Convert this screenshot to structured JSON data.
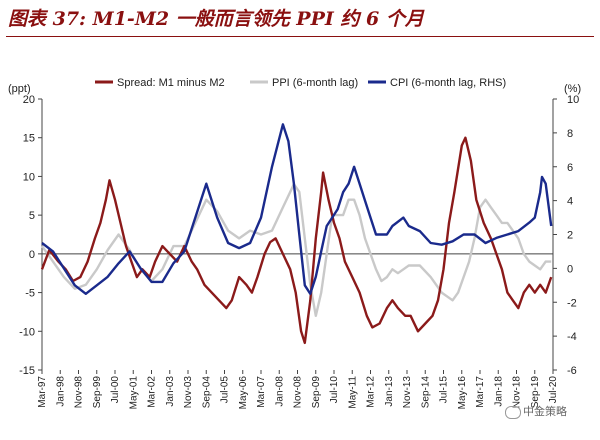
{
  "title": "图表 37: M1-M2 一般而言领先 PPI 约 6 个月",
  "watermark": "中金策略",
  "chart_data": {
    "type": "line",
    "left_unit": "(ppt)",
    "right_unit": "(%)",
    "ylim_left": [
      -15,
      20
    ],
    "yticks_left": [
      20,
      15,
      10,
      5,
      0,
      -5,
      -10,
      -15
    ],
    "ylim_right": [
      -6,
      10
    ],
    "yticks_right": [
      10,
      8,
      6,
      4,
      2,
      0,
      -2,
      -4,
      -6
    ],
    "x_ticks": [
      "Mar-97",
      "Jan-98",
      "Nov-98",
      "Sep-99",
      "Jul-00",
      "May-01",
      "Mar-02",
      "Jan-03",
      "Nov-03",
      "Sep-04",
      "Jul-05",
      "May-06",
      "Mar-07",
      "Jan-08",
      "Nov-08",
      "Sep-09",
      "Jul-10",
      "May-11",
      "Mar-12",
      "Jan-13",
      "Nov-13",
      "Sep-14",
      "Jul-15",
      "May-16",
      "Mar-17",
      "Jan-18",
      "Nov-18",
      "Sep-19",
      "Jul-20"
    ],
    "legend_position": "top",
    "gridlines": false,
    "series": [
      {
        "name": "Spread: M1 minus M2",
        "axis": "left",
        "color": "#8b1a1a",
        "points": [
          [
            "1997-03",
            -2
          ],
          [
            "1997-07",
            0.5
          ],
          [
            "1997-12",
            -1
          ],
          [
            "1998-04",
            -2
          ],
          [
            "1998-08",
            -3.5
          ],
          [
            "1998-12",
            -3
          ],
          [
            "1999-04",
            -1
          ],
          [
            "1999-08",
            2
          ],
          [
            "1999-11",
            4
          ],
          [
            "2000-02",
            7
          ],
          [
            "2000-04",
            9.5
          ],
          [
            "2000-07",
            7
          ],
          [
            "2000-10",
            4
          ],
          [
            "2001-01",
            1
          ],
          [
            "2001-04",
            -1
          ],
          [
            "2001-07",
            -3
          ],
          [
            "2001-10",
            -2
          ],
          [
            "2002-02",
            -3
          ],
          [
            "2002-05",
            -1
          ],
          [
            "2002-09",
            1
          ],
          [
            "2003-01",
            0
          ],
          [
            "2003-05",
            -1
          ],
          [
            "2003-09",
            1
          ],
          [
            "2004-01",
            -1
          ],
          [
            "2004-04",
            -2
          ],
          [
            "2004-08",
            -4
          ],
          [
            "2004-12",
            -5
          ],
          [
            "2005-04",
            -6
          ],
          [
            "2005-08",
            -7
          ],
          [
            "2005-11",
            -6
          ],
          [
            "2006-03",
            -3
          ],
          [
            "2006-07",
            -4
          ],
          [
            "2006-10",
            -5
          ],
          [
            "2007-01",
            -3
          ],
          [
            "2007-05",
            0
          ],
          [
            "2007-08",
            1.5
          ],
          [
            "2007-11",
            2
          ],
          [
            "2008-03",
            0
          ],
          [
            "2008-07",
            -2
          ],
          [
            "2008-10",
            -5
          ],
          [
            "2009-01",
            -10
          ],
          [
            "2009-03",
            -11.5
          ],
          [
            "2009-06",
            -6
          ],
          [
            "2009-09",
            2
          ],
          [
            "2009-12",
            8
          ],
          [
            "2010-01",
            10.5
          ],
          [
            "2010-04",
            7
          ],
          [
            "2010-07",
            4
          ],
          [
            "2010-10",
            2
          ],
          [
            "2011-01",
            -1
          ],
          [
            "2011-05",
            -3
          ],
          [
            "2011-09",
            -5
          ],
          [
            "2012-01",
            -8
          ],
          [
            "2012-04",
            -9.5
          ],
          [
            "2012-08",
            -9
          ],
          [
            "2012-12",
            -7
          ],
          [
            "2013-03",
            -6
          ],
          [
            "2013-06",
            -7
          ],
          [
            "2013-10",
            -8
          ],
          [
            "2014-01",
            -8
          ],
          [
            "2014-05",
            -10
          ],
          [
            "2014-09",
            -9
          ],
          [
            "2015-01",
            -8
          ],
          [
            "2015-04",
            -6
          ],
          [
            "2015-07",
            -2
          ],
          [
            "2015-10",
            4
          ],
          [
            "2016-01",
            8
          ],
          [
            "2016-05",
            14
          ],
          [
            "2016-07",
            15
          ],
          [
            "2016-10",
            12
          ],
          [
            "2017-01",
            7
          ],
          [
            "2017-05",
            4
          ],
          [
            "2017-09",
            2
          ],
          [
            "2017-12",
            0
          ],
          [
            "2018-03",
            -2
          ],
          [
            "2018-06",
            -5
          ],
          [
            "2018-09",
            -6
          ],
          [
            "2018-12",
            -7
          ],
          [
            "2019-03",
            -5
          ],
          [
            "2019-06",
            -4
          ],
          [
            "2019-09",
            -5
          ],
          [
            "2019-12",
            -4
          ],
          [
            "2020-03",
            -5
          ],
          [
            "2020-06",
            -3
          ]
        ]
      },
      {
        "name": "PPI (6-month lag)",
        "axis": "left",
        "color": "#c9c9c9",
        "points": [
          [
            "1997-03",
            1
          ],
          [
            "1997-09",
            -1
          ],
          [
            "1998-03",
            -3
          ],
          [
            "1998-09",
            -4.5
          ],
          [
            "1999-03",
            -4
          ],
          [
            "1999-09",
            -2
          ],
          [
            "2000-03",
            0.5
          ],
          [
            "2000-09",
            2.5
          ],
          [
            "2001-03",
            0.5
          ],
          [
            "2001-09",
            -2
          ],
          [
            "2002-03",
            -3.5
          ],
          [
            "2002-09",
            -2
          ],
          [
            "2003-03",
            1
          ],
          [
            "2003-09",
            1
          ],
          [
            "2004-03",
            4
          ],
          [
            "2004-09",
            7
          ],
          [
            "2005-03",
            5.5
          ],
          [
            "2005-09",
            3
          ],
          [
            "2006-03",
            2
          ],
          [
            "2006-09",
            3
          ],
          [
            "2007-03",
            2.5
          ],
          [
            "2007-09",
            3
          ],
          [
            "2008-03",
            6
          ],
          [
            "2008-09",
            9
          ],
          [
            "2008-12",
            8
          ],
          [
            "2009-03",
            2
          ],
          [
            "2009-06",
            -4
          ],
          [
            "2009-09",
            -8
          ],
          [
            "2009-12",
            -5
          ],
          [
            "2010-03",
            0
          ],
          [
            "2010-06",
            5
          ],
          [
            "2010-09",
            5
          ],
          [
            "2010-12",
            5
          ],
          [
            "2011-03",
            7
          ],
          [
            "2011-06",
            7
          ],
          [
            "2011-09",
            5
          ],
          [
            "2011-12",
            2
          ],
          [
            "2012-03",
            0
          ],
          [
            "2012-06",
            -2
          ],
          [
            "2012-09",
            -3.5
          ],
          [
            "2012-12",
            -3
          ],
          [
            "2013-03",
            -2
          ],
          [
            "2013-06",
            -2.5
          ],
          [
            "2013-09",
            -2
          ],
          [
            "2013-12",
            -1.5
          ],
          [
            "2014-06",
            -1.5
          ],
          [
            "2014-12",
            -3
          ],
          [
            "2015-06",
            -5
          ],
          [
            "2015-12",
            -6
          ],
          [
            "2016-03",
            -5
          ],
          [
            "2016-06",
            -3
          ],
          [
            "2016-09",
            -1
          ],
          [
            "2016-12",
            2
          ],
          [
            "2017-03",
            6
          ],
          [
            "2017-06",
            7
          ],
          [
            "2017-09",
            6
          ],
          [
            "2017-12",
            5
          ],
          [
            "2018-03",
            4
          ],
          [
            "2018-06",
            4
          ],
          [
            "2018-09",
            3
          ],
          [
            "2018-12",
            2
          ],
          [
            "2019-03",
            0
          ],
          [
            "2019-06",
            -1
          ],
          [
            "2019-09",
            -1.5
          ],
          [
            "2019-12",
            -2
          ],
          [
            "2020-03",
            -1
          ],
          [
            "2020-06",
            -1
          ]
        ]
      },
      {
        "name": "CPI (6-month lag, RHS)",
        "axis": "right",
        "color": "#1a2a8c",
        "points": [
          [
            "1997-03",
            1.5
          ],
          [
            "1997-09",
            1
          ],
          [
            "1998-03",
            0
          ],
          [
            "1998-09",
            -1
          ],
          [
            "1999-03",
            -1.5
          ],
          [
            "1999-09",
            -1
          ],
          [
            "2000-03",
            -0.5
          ],
          [
            "2000-09",
            0.3
          ],
          [
            "2001-03",
            1
          ],
          [
            "2001-09",
            0
          ],
          [
            "2002-03",
            -0.8
          ],
          [
            "2002-09",
            -0.8
          ],
          [
            "2003-03",
            0.3
          ],
          [
            "2003-09",
            1
          ],
          [
            "2004-03",
            3
          ],
          [
            "2004-09",
            5
          ],
          [
            "2005-03",
            3
          ],
          [
            "2005-09",
            1.5
          ],
          [
            "2006-03",
            1.2
          ],
          [
            "2006-09",
            1.5
          ],
          [
            "2007-03",
            3
          ],
          [
            "2007-09",
            6
          ],
          [
            "2008-03",
            8.5
          ],
          [
            "2008-06",
            7.5
          ],
          [
            "2008-09",
            5
          ],
          [
            "2008-12",
            2
          ],
          [
            "2009-03",
            -1
          ],
          [
            "2009-06",
            -1.5
          ],
          [
            "2009-09",
            -0.5
          ],
          [
            "2009-12",
            1
          ],
          [
            "2010-03",
            2.5
          ],
          [
            "2010-06",
            3
          ],
          [
            "2010-09",
            3.5
          ],
          [
            "2010-12",
            4.5
          ],
          [
            "2011-03",
            5
          ],
          [
            "2011-06",
            6
          ],
          [
            "2011-09",
            5
          ],
          [
            "2011-12",
            4
          ],
          [
            "2012-03",
            3
          ],
          [
            "2012-06",
            2
          ],
          [
            "2012-09",
            2
          ],
          [
            "2012-12",
            2
          ],
          [
            "2013-03",
            2.5
          ],
          [
            "2013-09",
            3
          ],
          [
            "2013-12",
            2.5
          ],
          [
            "2014-06",
            2.2
          ],
          [
            "2014-12",
            1.5
          ],
          [
            "2015-06",
            1.4
          ],
          [
            "2015-12",
            1.6
          ],
          [
            "2016-06",
            2
          ],
          [
            "2016-12",
            2
          ],
          [
            "2017-06",
            1.5
          ],
          [
            "2017-12",
            1.8
          ],
          [
            "2018-06",
            2
          ],
          [
            "2018-12",
            2.2
          ],
          [
            "2019-06",
            2.7
          ],
          [
            "2019-09",
            3
          ],
          [
            "2019-12",
            4.5
          ],
          [
            "2020-01",
            5.4
          ],
          [
            "2020-03",
            5
          ],
          [
            "2020-06",
            2.5
          ]
        ]
      }
    ]
  }
}
